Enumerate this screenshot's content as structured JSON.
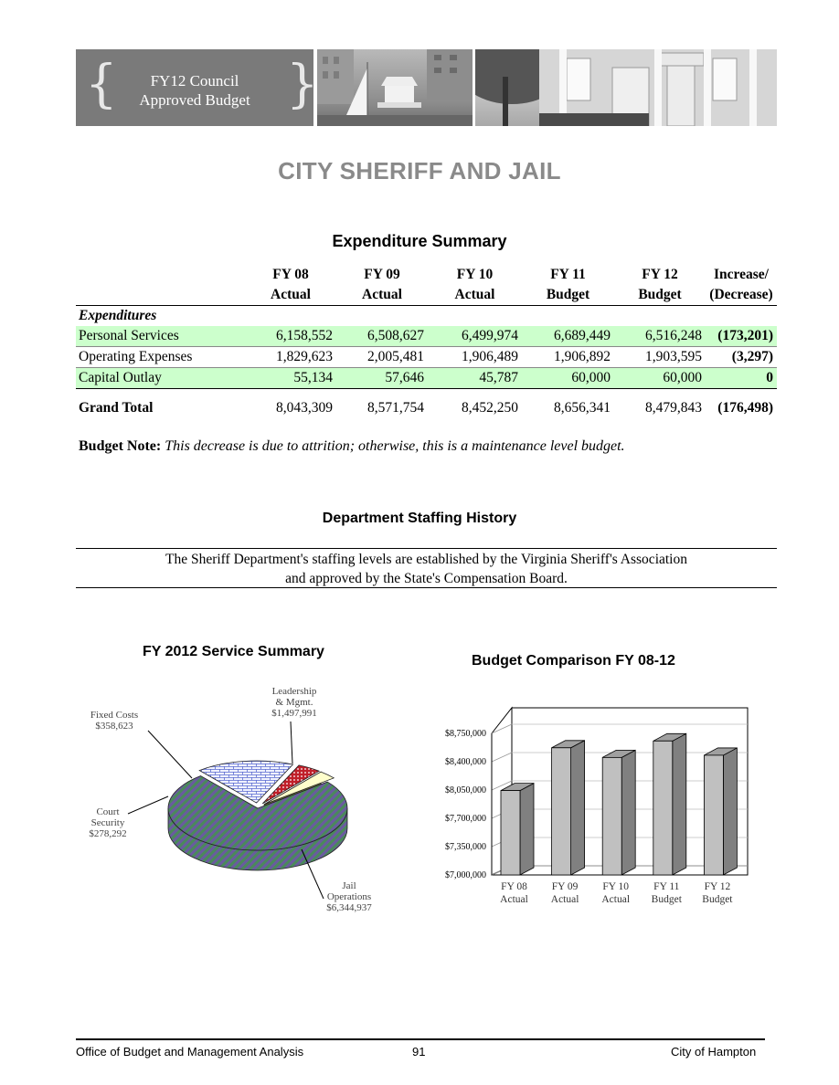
{
  "header": {
    "banner_line1": "FY12 Council",
    "banner_line2": "Approved Budget"
  },
  "page_title": "CITY SHERIFF AND JAIL",
  "expenditure_summary": {
    "heading": "Expenditure Summary",
    "columns": [
      {
        "line1": "FY 08",
        "line2": "Actual"
      },
      {
        "line1": "FY 09",
        "line2": "Actual"
      },
      {
        "line1": "FY 10",
        "line2": "Actual"
      },
      {
        "line1": "FY 11",
        "line2": "Budget"
      },
      {
        "line1": "FY 12",
        "line2": "Budget"
      },
      {
        "line1": "Increase/",
        "line2": "(Decrease)"
      }
    ],
    "section_label": "Expenditures",
    "rows": [
      {
        "label": "Personal Services",
        "values": [
          "6,158,552",
          "6,508,627",
          "6,499,974",
          "6,689,449",
          "6,516,248",
          "(173,201)"
        ]
      },
      {
        "label": "Operating Expenses",
        "values": [
          "1,829,623",
          "2,005,481",
          "1,906,489",
          "1,906,892",
          "1,903,595",
          "(3,297)"
        ]
      },
      {
        "label": "Capital Outlay",
        "values": [
          "55,134",
          "57,646",
          "45,787",
          "60,000",
          "60,000",
          "0"
        ]
      }
    ],
    "total": {
      "label": "Grand Total",
      "values": [
        "8,043,309",
        "8,571,754",
        "8,452,250",
        "8,656,341",
        "8,479,843",
        "(176,498)"
      ]
    }
  },
  "budget_note": {
    "label": "Budget Note:",
    "text": "This decrease is due to attrition; otherwise, this is a maintenance level budget."
  },
  "staffing": {
    "heading": "Department Staffing History",
    "line1": "The Sheriff Department's staffing levels are established by the Virginia Sheriff's Association",
    "line2": "and approved by the State's Compensation Board."
  },
  "chart_data": [
    {
      "type": "pie",
      "title": "FY 2012 Service Summary",
      "slices": [
        {
          "name": "Leadership & Mgmt.",
          "label_lines": [
            "Leadership",
            "& Mgmt.",
            "$1,497,991"
          ],
          "value": 1497991,
          "color": "#d0d8ff"
        },
        {
          "name": "Fixed Costs",
          "label_lines": [
            "Fixed Costs",
            "$358,623"
          ],
          "value": 358623,
          "color": "#c0202a"
        },
        {
          "name": "Court Security",
          "label_lines": [
            "Court",
            "Security",
            "$278,292"
          ],
          "value": 278292,
          "color": "#ffffcc"
        },
        {
          "name": "Jail Operations",
          "label_lines": [
            "Jail",
            "Operations",
            "$6,344,937"
          ],
          "value": 6344937,
          "color": "#5a7a6a"
        }
      ]
    },
    {
      "type": "bar",
      "title": "Budget Comparison FY 08-12",
      "categories": [
        [
          "FY 08",
          "Actual"
        ],
        [
          "FY 09",
          "Actual"
        ],
        [
          "FY 10",
          "Actual"
        ],
        [
          "FY 11",
          "Budget"
        ],
        [
          "FY 12",
          "Budget"
        ]
      ],
      "values": [
        8043309,
        8571754,
        8452250,
        8656341,
        8479843
      ],
      "ylim": [
        7000000,
        8750000
      ],
      "yticks": [
        "$7,000,000",
        "$7,350,000",
        "$7,700,000",
        "$8,050,000",
        "$8,400,000",
        "$8,750,000"
      ],
      "grid": true,
      "bar_color": "#c0c0c0"
    }
  ],
  "footer": {
    "left": "Office of Budget and Management Analysis",
    "center": "91",
    "right": "City of Hampton"
  }
}
